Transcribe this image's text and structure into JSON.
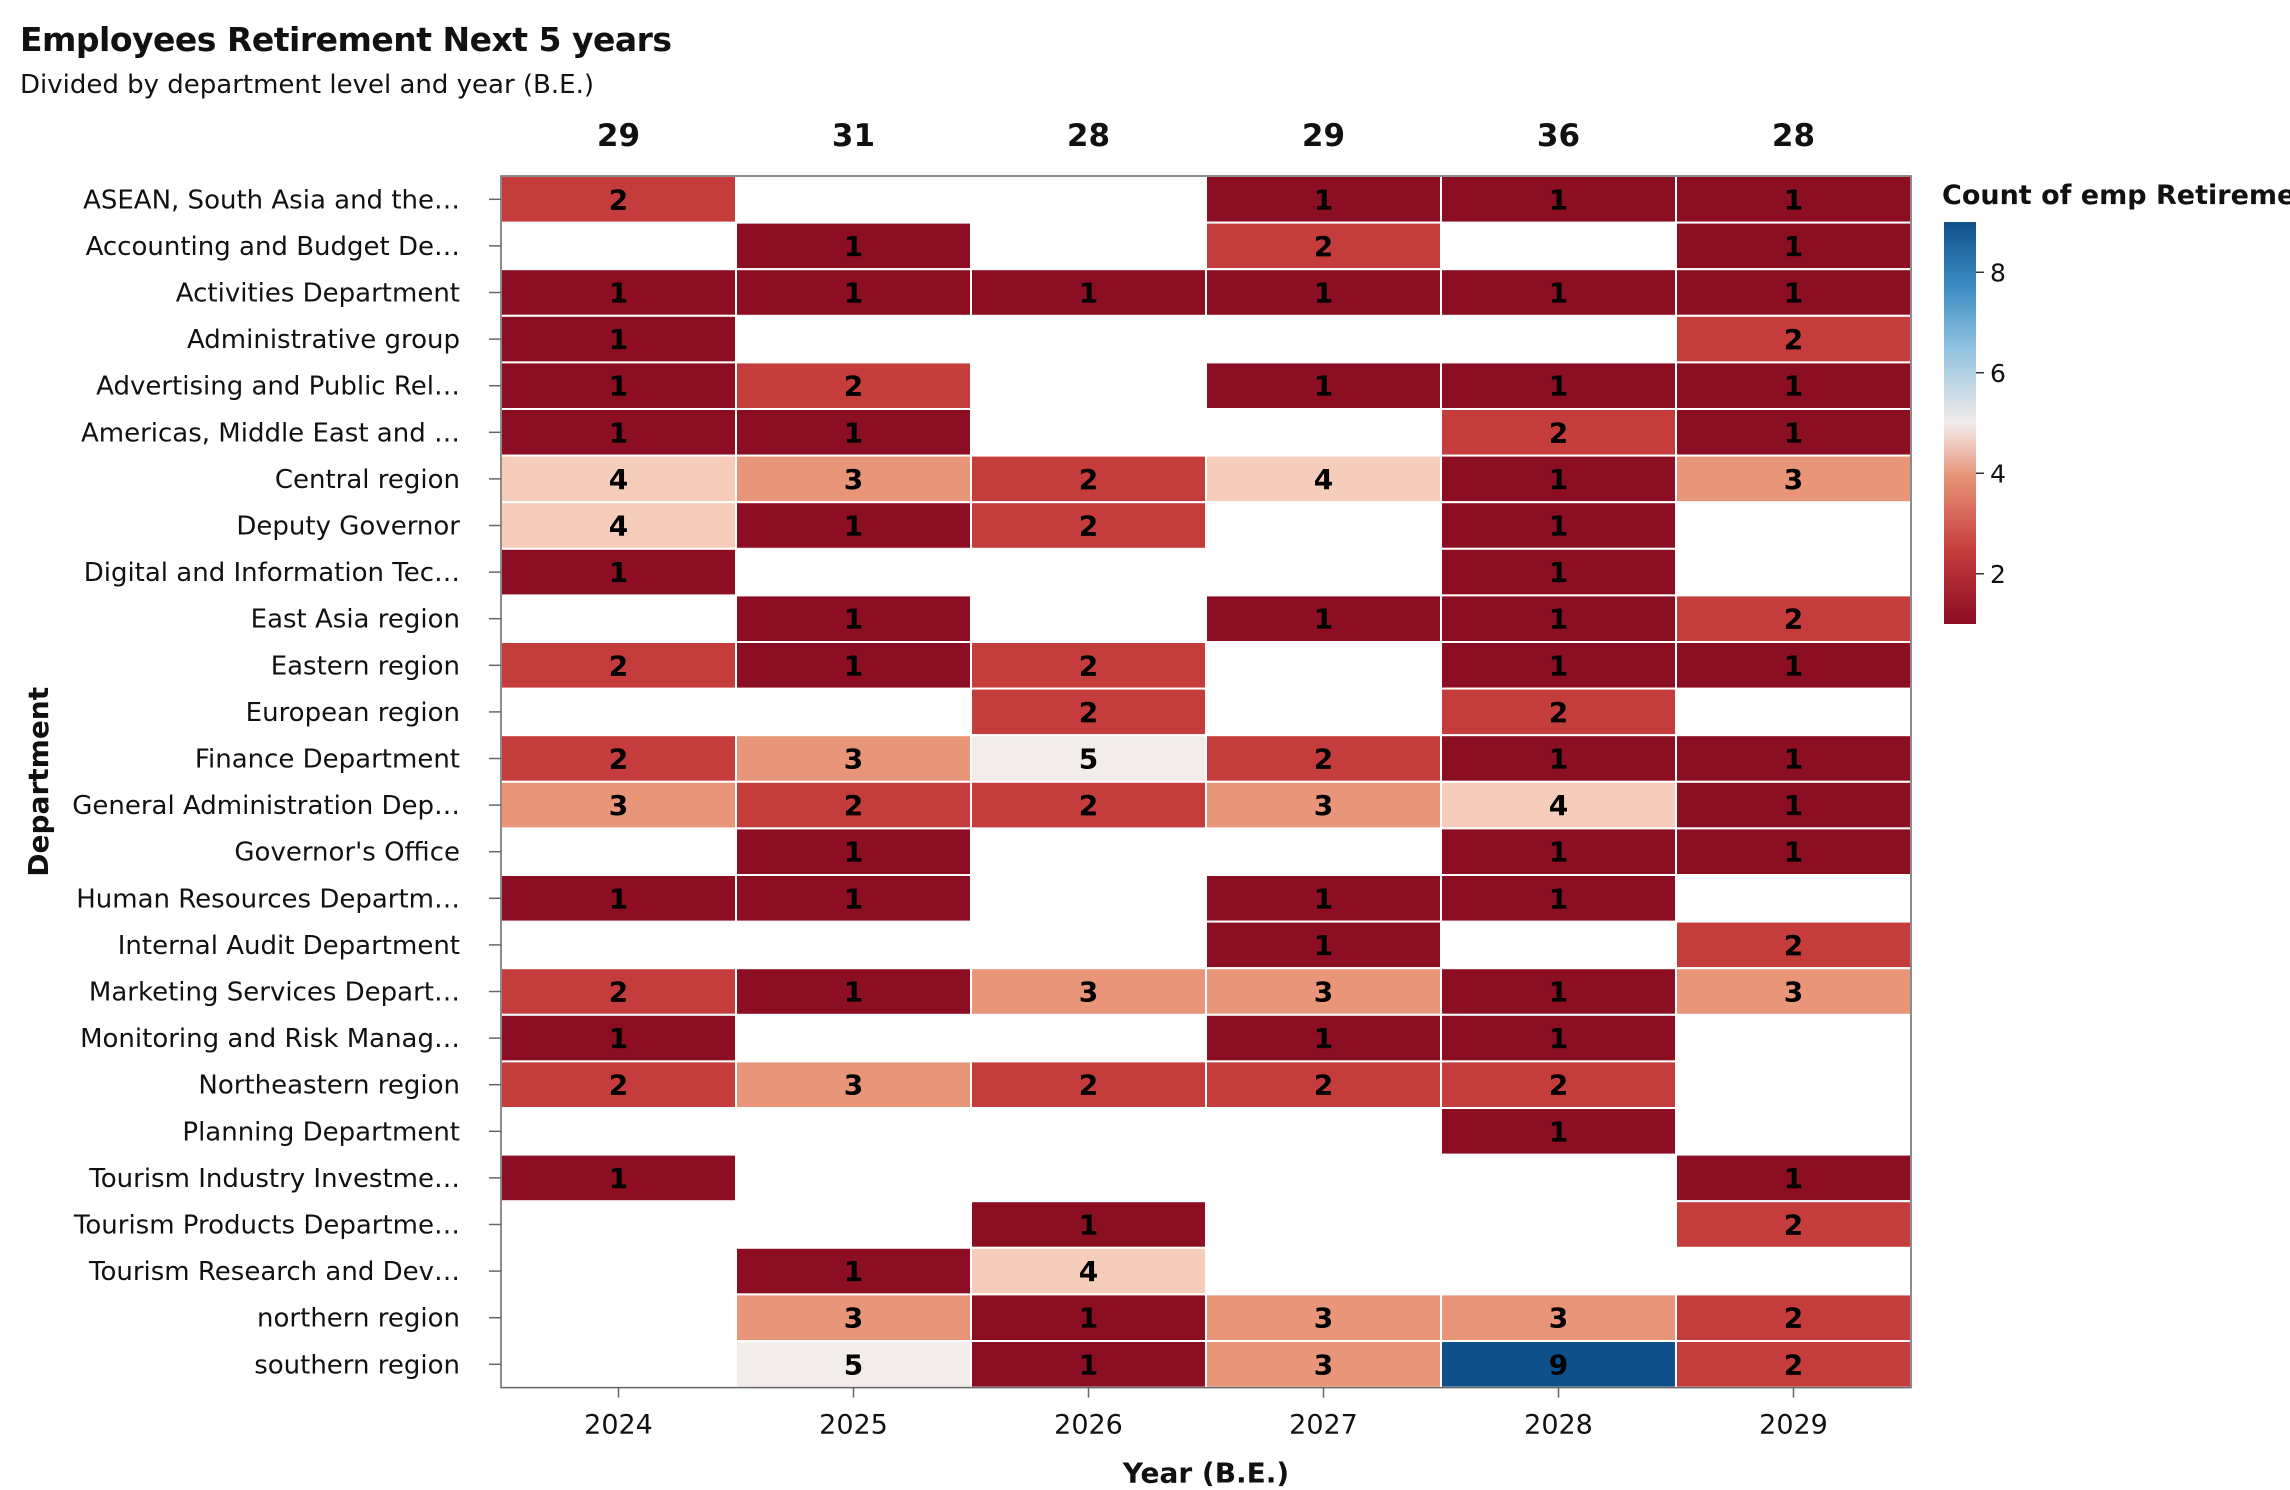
{
  "title": "Employees Retirement Next 5 years",
  "subtitle": "Divided by department level and year (B.E.)",
  "chart_data": {
    "type": "heatmap",
    "xlabel": "Year (B.E.)",
    "ylabel": "Department",
    "legend_title": "Count of emp Retirement",
    "legend_ticks": [
      2,
      4,
      6,
      8
    ],
    "color_range": [
      1,
      9
    ],
    "colors": {
      "low": "#8b0e23",
      "mid": "#f2ecea",
      "high": "#10508a"
    },
    "years": [
      "2024",
      "2025",
      "2026",
      "2027",
      "2028",
      "2029"
    ],
    "column_totals": [
      29,
      31,
      28,
      29,
      36,
      28
    ],
    "departments": [
      "ASEAN, South Asia and the…",
      "Accounting and Budget De…",
      "Activities Department",
      "Administrative group",
      "Advertising and Public Rel…",
      "Americas, Middle East and …",
      "Central region",
      "Deputy Governor",
      "Digital and Information Tec…",
      "East Asia region",
      "Eastern region",
      "European region",
      "Finance Department",
      "General Administration Dep…",
      "Governor's Office",
      "Human Resources Departm…",
      "Internal Audit Department",
      "Marketing Services Depart…",
      "Monitoring and Risk Manag…",
      "Northeastern region",
      "Planning Department",
      "Tourism Industry Investme…",
      "Tourism Products Departme…",
      "Tourism Research and Dev…",
      "northern region",
      "southern region"
    ],
    "values": [
      [
        2,
        null,
        null,
        1,
        1,
        1
      ],
      [
        null,
        1,
        null,
        2,
        null,
        1
      ],
      [
        1,
        1,
        1,
        1,
        1,
        1
      ],
      [
        1,
        null,
        null,
        null,
        null,
        2
      ],
      [
        1,
        2,
        null,
        1,
        1,
        1
      ],
      [
        1,
        1,
        null,
        null,
        2,
        1
      ],
      [
        4,
        3,
        2,
        4,
        1,
        3
      ],
      [
        4,
        1,
        2,
        null,
        1,
        null
      ],
      [
        1,
        null,
        null,
        null,
        1,
        null
      ],
      [
        null,
        1,
        null,
        1,
        1,
        2
      ],
      [
        2,
        1,
        2,
        null,
        1,
        1
      ],
      [
        null,
        null,
        2,
        null,
        2,
        null
      ],
      [
        2,
        3,
        5,
        2,
        1,
        1
      ],
      [
        3,
        2,
        2,
        3,
        4,
        1
      ],
      [
        null,
        1,
        null,
        null,
        1,
        1
      ],
      [
        1,
        1,
        null,
        1,
        1,
        null
      ],
      [
        null,
        null,
        null,
        1,
        null,
        2
      ],
      [
        2,
        1,
        3,
        3,
        1,
        3
      ],
      [
        1,
        null,
        null,
        1,
        1,
        null
      ],
      [
        2,
        3,
        2,
        2,
        2,
        null
      ],
      [
        null,
        null,
        null,
        null,
        1,
        null
      ],
      [
        1,
        null,
        null,
        null,
        null,
        1
      ],
      [
        null,
        null,
        1,
        null,
        null,
        2
      ],
      [
        null,
        1,
        4,
        null,
        null,
        null
      ],
      [
        null,
        3,
        1,
        3,
        3,
        2
      ],
      [
        null,
        5,
        1,
        3,
        9,
        2
      ]
    ]
  }
}
